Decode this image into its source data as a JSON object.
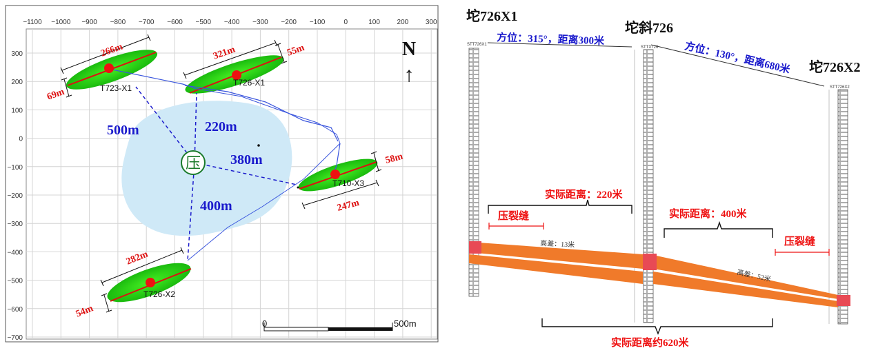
{
  "map": {
    "x_ticks": [
      "−1100",
      "−1000",
      "−900",
      "−800",
      "−700",
      "−600",
      "−500",
      "−400",
      "−300",
      "−200",
      "−100",
      "0",
      "100",
      "200",
      "300"
    ],
    "y_ticks": [
      "300",
      "200",
      "100",
      "0",
      "−100",
      "−200",
      "−300",
      "−400",
      "−500",
      "−600",
      "−700"
    ],
    "north_label": "N",
    "north_arrow": "↑",
    "center_symbol": "压",
    "wells": {
      "t723": "T723-X1",
      "t726x1": "T726-X1",
      "t710": "T710-X3",
      "t726x2": "T726-X2"
    },
    "dims": {
      "t723_len": "266m",
      "t723_wid": "69m",
      "t726x1_len": "321m",
      "t726x1_wid": "55m",
      "t710_wid": "58m",
      "t710_len": "247m",
      "t726x2_len": "282m",
      "t726x2_wid": "54m"
    },
    "distances": {
      "d500": "500m",
      "d220": "220m",
      "d380": "380m",
      "d400": "400m"
    },
    "scale": {
      "start": "0",
      "end": "500m"
    },
    "colors": {
      "blob": "#cfe9f7",
      "well_zone": "#22cc11",
      "fracture": "#dd1111",
      "distance_text": "#1a1acc",
      "dim_text": "#dd1111",
      "center": "#1a7a2a"
    }
  },
  "section": {
    "well1": "坨726X1",
    "well2": "坨斜726",
    "well3": "坨726X2",
    "az1": "方位：315°，距离300米",
    "az2": "方位：130°，距离680米",
    "log1_header": "STT726X1",
    "log2_header": "STTX726",
    "log3_header": "STT726X2",
    "frac1": "压裂缝",
    "frac2": "压裂缝",
    "dist1": "实际距离：220米",
    "dist2": "实际距离：400米",
    "total": "实际距离约620米",
    "elev1": "高差：13米",
    "elev2": "高差：52米",
    "colors": {
      "layer": "#f07a2a",
      "perf": "#e84a55",
      "red_text": "#ee1111",
      "blue_text": "#1a1acc"
    }
  }
}
